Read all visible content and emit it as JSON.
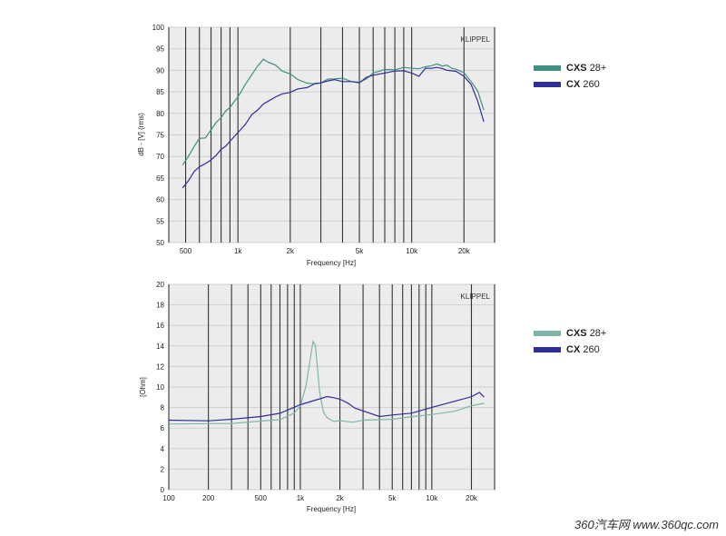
{
  "chart_data": [
    {
      "type": "line",
      "xscale": "log",
      "xlim": [
        400,
        30000
      ],
      "ylim": [
        50,
        100
      ],
      "ylabel": "dB - [V]  (rms)",
      "xlabel": "Frequency [Hz]",
      "brand": "KLIPPEL",
      "x_ticks": [
        {
          "value": 500,
          "label": "500"
        },
        {
          "value": 1000,
          "label": "1k"
        },
        {
          "value": 2000,
          "label": "2k"
        },
        {
          "value": 5000,
          "label": "5k"
        },
        {
          "value": 10000,
          "label": "10k"
        },
        {
          "value": 20000,
          "label": "20k"
        }
      ],
      "y_ticks": [
        50,
        55,
        60,
        65,
        70,
        75,
        80,
        85,
        90,
        95,
        100
      ],
      "series": [
        {
          "color": "#3f8f80",
          "x": [
            480,
            520,
            560,
            600,
            650,
            700,
            750,
            800,
            850,
            900,
            950,
            1000,
            1100,
            1200,
            1300,
            1400,
            1500,
            1650,
            1800,
            2000,
            2200,
            2500,
            2800,
            3000,
            3300,
            3600,
            4000,
            4500,
            5000,
            5500,
            6000,
            7000,
            8000,
            9000,
            10000,
            11000,
            12000,
            13000,
            14000,
            15000,
            16000,
            17000,
            18000,
            20000,
            22000,
            24000,
            26000
          ],
          "y": [
            68,
            70,
            72.5,
            74,
            74.5,
            76,
            78,
            79,
            80.5,
            81.5,
            82.5,
            84,
            86.5,
            89,
            91,
            92.5,
            92,
            91,
            90,
            89,
            88,
            87,
            86.8,
            87.2,
            87.8,
            88.2,
            88,
            87.5,
            87.2,
            88,
            89.5,
            90,
            90.3,
            90.5,
            90.6,
            90.3,
            90.8,
            91.2,
            91.3,
            91.2,
            91,
            90.6,
            90.2,
            89.4,
            87.5,
            85,
            81
          ]
        },
        {
          "color": "#2e2e96",
          "x": [
            480,
            520,
            560,
            600,
            650,
            700,
            750,
            800,
            850,
            900,
            1000,
            1100,
            1200,
            1300,
            1400,
            1500,
            1650,
            1800,
            2000,
            2200,
            2500,
            2800,
            3000,
            3300,
            3600,
            4000,
            4500,
            5000,
            5500,
            6000,
            7000,
            8000,
            9000,
            10000,
            11000,
            12000,
            13000,
            14000,
            15000,
            16000,
            18000,
            20000,
            22000,
            24000,
            26000
          ],
          "y": [
            62.5,
            64.5,
            66.5,
            67.5,
            68.5,
            69,
            70.5,
            71.5,
            72.5,
            73.5,
            75.5,
            77.5,
            79.5,
            81,
            82,
            83,
            83.8,
            84.5,
            85,
            85.5,
            86.2,
            86.8,
            87.2,
            87.5,
            87.8,
            87.5,
            87.2,
            87.3,
            88.2,
            89,
            89.3,
            89.8,
            90,
            89.2,
            88.8,
            90.3,
            90.6,
            90.6,
            90.4,
            90.1,
            89.6,
            88.8,
            86.5,
            83,
            78
          ]
        }
      ]
    },
    {
      "type": "line",
      "xscale": "log",
      "xlim": [
        100,
        30000
      ],
      "ylim": [
        0,
        20
      ],
      "ylabel": "[Ohm]",
      "xlabel": "Frequency [Hz]",
      "brand": "KLIPPEL",
      "x_ticks": [
        {
          "value": 100,
          "label": "100"
        },
        {
          "value": 200,
          "label": "200"
        },
        {
          "value": 500,
          "label": "500"
        },
        {
          "value": 1000,
          "label": "1k"
        },
        {
          "value": 2000,
          "label": "2k"
        },
        {
          "value": 5000,
          "label": "5k"
        },
        {
          "value": 10000,
          "label": "10k"
        },
        {
          "value": 20000,
          "label": "20k"
        }
      ],
      "y_ticks": [
        0,
        2,
        4,
        6,
        8,
        10,
        12,
        14,
        16,
        18,
        20
      ],
      "series": [
        {
          "color": "#7fb5a9",
          "x": [
            100,
            200,
            300,
            500,
            700,
            900,
            1000,
            1100,
            1200,
            1250,
            1300,
            1350,
            1400,
            1500,
            1600,
            1700,
            1800,
            2000,
            2500,
            3000,
            5000,
            7000,
            10000,
            15000,
            20000,
            25000
          ],
          "y": [
            6.4,
            6.4,
            6.5,
            6.6,
            6.9,
            7.4,
            8.2,
            10,
            13,
            14.5,
            14,
            12,
            9.5,
            7.6,
            7.0,
            6.8,
            6.7,
            6.65,
            6.65,
            6.7,
            6.9,
            7.1,
            7.3,
            7.7,
            8.1,
            8.5
          ]
        },
        {
          "color": "#2e2e96",
          "x": [
            100,
            200,
            300,
            500,
            700,
            1000,
            1300,
            1600,
            1800,
            2000,
            2300,
            2600,
            3000,
            4000,
            5000,
            7000,
            10000,
            15000,
            20000,
            23000,
            25000
          ],
          "y": [
            6.7,
            6.75,
            6.85,
            7.1,
            7.5,
            8.2,
            8.8,
            9.0,
            9.0,
            8.8,
            8.4,
            8.0,
            7.6,
            7.2,
            7.2,
            7.5,
            8.0,
            8.6,
            9.1,
            9.4,
            9.1
          ]
        }
      ]
    }
  ],
  "legend_top": {
    "items": [
      {
        "brand": "CXS",
        "model": "28+",
        "color": "#3f8f80"
      },
      {
        "brand": "CX",
        "model": "260",
        "color": "#2e2e96"
      }
    ]
  },
  "legend_bottom": {
    "items": [
      {
        "brand": "CXS",
        "model": "28+",
        "color": "#7fb5a9"
      },
      {
        "brand": "CX",
        "model": "260",
        "color": "#2e2e96"
      }
    ]
  },
  "watermark": "360汽车网 www.360qc.com"
}
